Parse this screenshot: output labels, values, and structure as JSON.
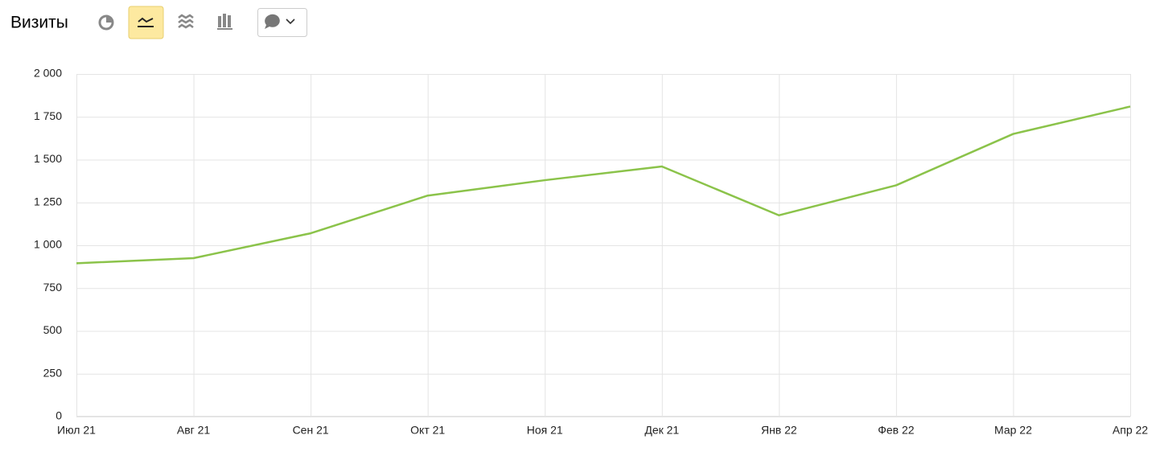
{
  "chart_data": {
    "type": "line",
    "title": "Визиты",
    "categories": [
      "Июл 21",
      "Авг 21",
      "Сен 21",
      "Окт 21",
      "Ноя 21",
      "Дек 21",
      "Янв 22",
      "Фев 22",
      "Мар 22",
      "Апр 22"
    ],
    "values": [
      895,
      925,
      1070,
      1290,
      1380,
      1460,
      1175,
      1350,
      1650,
      1810
    ],
    "color": "#8bc34a",
    "ylim": [
      0,
      2000
    ],
    "yticks": [
      0,
      250,
      500,
      750,
      {
        "value": 1000,
        "label": "1 000"
      },
      {
        "value": 1250,
        "label": "1 250"
      },
      {
        "value": 1500,
        "label": "1 500"
      },
      {
        "value": 1750,
        "label": "1 750"
      },
      {
        "value": 2000,
        "label": "2 000"
      }
    ],
    "grid": true
  }
}
